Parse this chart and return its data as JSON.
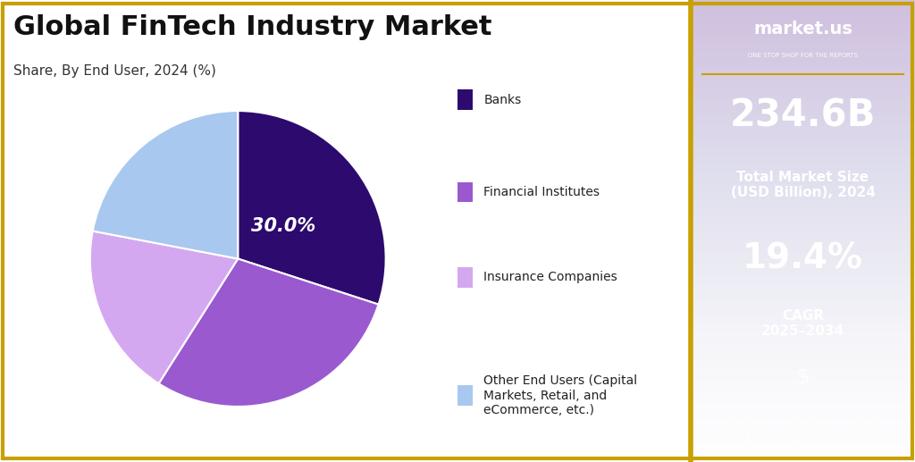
{
  "title": "Global FinTech Industry Market",
  "subtitle": "Share, By End User, 2024 (%)",
  "slices": [
    30.0,
    29.0,
    19.0,
    22.0
  ],
  "labels": [
    "Banks",
    "Financial Institutes",
    "Insurance Companies",
    "Other End Users (Capital\nMarkets, Retail, and\neCommerce, etc.)"
  ],
  "colors": [
    "#2d0a6e",
    "#9b59d0",
    "#d4a8f0",
    "#a8c8f0"
  ],
  "center_label": "30.0%",
  "start_angle": 90,
  "bg_color": "#ffffff",
  "border_color": "#c8a000",
  "right_panel_bg": "#8b2fc9",
  "market_size_value": "234.6B",
  "market_size_label": "Total Market Size\n(USD Billion), 2024",
  "cagr_value": "19.4%",
  "cagr_label": "CAGR\n2025–2034",
  "logo_text": "market.us",
  "logo_subtext": "ONE STOP SHOP FOR THE REPORTS"
}
